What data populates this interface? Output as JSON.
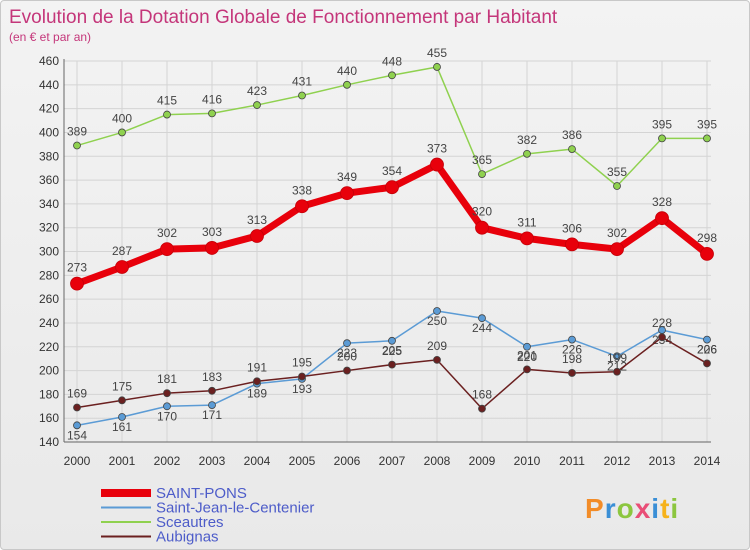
{
  "chart_data": {
    "type": "line",
    "title": "Evolution de la Dotation Globale de Fonctionnement par Habitant",
    "subtitle": "(en € et par an)",
    "x": [
      "2000",
      "2001",
      "2002",
      "2003",
      "2004",
      "2005",
      "2006",
      "2007",
      "2008",
      "2009",
      "2010",
      "2011",
      "2012",
      "2013",
      "2014"
    ],
    "ylim": [
      140,
      460
    ],
    "yticks": [
      140,
      160,
      180,
      200,
      220,
      240,
      260,
      280,
      300,
      320,
      340,
      360,
      380,
      400,
      420,
      440,
      460
    ],
    "grid": true,
    "legend_position": "bottom-left",
    "series": [
      {
        "name": "SAINT-PONS",
        "color": "#e8000b",
        "values": [
          273,
          287,
          302,
          303,
          313,
          338,
          349,
          354,
          373,
          320,
          311,
          306,
          302,
          328,
          298
        ]
      },
      {
        "name": "Saint-Jean-le-Centenier",
        "color": "#5b9bd5",
        "values": [
          154,
          161,
          170,
          171,
          189,
          193,
          223,
          225,
          250,
          244,
          220,
          226,
          212,
          234,
          226
        ]
      },
      {
        "name": "Sceautres",
        "color": "#8fd14f",
        "values": [
          389,
          400,
          415,
          416,
          423,
          431,
          440,
          448,
          455,
          365,
          382,
          386,
          355,
          395,
          395
        ]
      },
      {
        "name": "Aubignas",
        "color": "#6b2020",
        "values": [
          169,
          175,
          181,
          183,
          191,
          195,
          200,
          205,
          209,
          168,
          201,
          198,
          199,
          228,
          206
        ]
      }
    ]
  },
  "brand": {
    "text": "Proxiti",
    "colors": [
      "#f28c28",
      "#3a8fd6",
      "#8cc63f",
      "#e94e77",
      "#3a8fd6",
      "#f6b21a",
      "#8cc63f"
    ]
  }
}
